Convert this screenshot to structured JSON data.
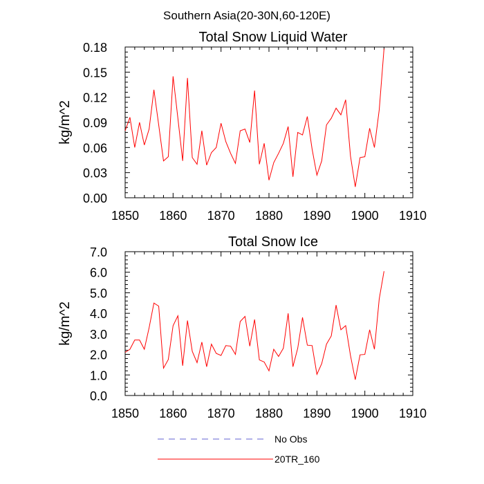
{
  "suptitle": "Southern Asia(20-30N,60-120E)",
  "chart_data": [
    {
      "type": "line",
      "title": "Total Snow Liquid Water",
      "xlabel": "",
      "ylabel": "kg/m^2",
      "xlim": [
        1850,
        1910
      ],
      "ylim": [
        0.0,
        0.18
      ],
      "xticks": [
        "1850",
        "1860",
        "1870",
        "1880",
        "1890",
        "1900",
        "1910"
      ],
      "yticks": [
        "0.00",
        "0.03",
        "0.06",
        "0.09",
        "0.12",
        "0.15",
        "0.18"
      ],
      "series": [
        {
          "name": "20TR_160",
          "color": "#ff0000",
          "x": [
            1850,
            1851,
            1852,
            1853,
            1854,
            1855,
            1856,
            1857,
            1858,
            1859,
            1860,
            1861,
            1862,
            1863,
            1864,
            1865,
            1866,
            1867,
            1868,
            1869,
            1870,
            1871,
            1872,
            1873,
            1874,
            1875,
            1876,
            1877,
            1878,
            1879,
            1880,
            1881,
            1882,
            1883,
            1884,
            1885,
            1886,
            1887,
            1888,
            1889,
            1890,
            1891,
            1892,
            1893,
            1894,
            1895,
            1896,
            1897,
            1898,
            1899,
            1900,
            1901,
            1902,
            1903,
            1904
          ],
          "values": [
            0.08,
            0.096,
            0.06,
            0.09,
            0.063,
            0.082,
            0.129,
            0.087,
            0.044,
            0.049,
            0.145,
            0.095,
            0.044,
            0.143,
            0.048,
            0.04,
            0.08,
            0.039,
            0.054,
            0.06,
            0.089,
            0.067,
            0.053,
            0.041,
            0.08,
            0.082,
            0.066,
            0.128,
            0.04,
            0.065,
            0.021,
            0.042,
            0.053,
            0.065,
            0.085,
            0.025,
            0.078,
            0.075,
            0.097,
            0.058,
            0.027,
            0.044,
            0.087,
            0.095,
            0.107,
            0.099,
            0.117,
            0.05,
            0.013,
            0.048,
            0.049,
            0.083,
            0.06,
            0.105,
            0.178
          ]
        }
      ]
    },
    {
      "type": "line",
      "title": "Total Snow Ice",
      "xlabel": "",
      "ylabel": "kg/m^2",
      "xlim": [
        1850,
        1910
      ],
      "ylim": [
        0.0,
        7.0
      ],
      "xticks": [
        "1850",
        "1860",
        "1870",
        "1880",
        "1890",
        "1900",
        "1910"
      ],
      "yticks": [
        "0.0",
        "1.0",
        "2.0",
        "3.0",
        "4.0",
        "5.0",
        "6.0",
        "7.0"
      ],
      "series": [
        {
          "name": "20TR_160",
          "color": "#ff0000",
          "x": [
            1850,
            1851,
            1852,
            1853,
            1854,
            1855,
            1856,
            1857,
            1858,
            1859,
            1860,
            1861,
            1862,
            1863,
            1864,
            1865,
            1866,
            1867,
            1868,
            1869,
            1870,
            1871,
            1872,
            1873,
            1874,
            1875,
            1876,
            1877,
            1878,
            1879,
            1880,
            1881,
            1882,
            1883,
            1884,
            1885,
            1886,
            1887,
            1888,
            1889,
            1890,
            1891,
            1892,
            1893,
            1894,
            1895,
            1896,
            1897,
            1898,
            1899,
            1900,
            1901,
            1902,
            1903,
            1904
          ],
          "values": [
            2.1,
            2.25,
            2.7,
            2.7,
            2.25,
            3.3,
            4.5,
            4.35,
            1.33,
            1.75,
            3.4,
            3.88,
            1.45,
            3.65,
            2.15,
            1.6,
            2.6,
            1.4,
            2.5,
            2.05,
            1.95,
            2.43,
            2.4,
            2.0,
            3.6,
            3.85,
            2.4,
            3.7,
            1.73,
            1.63,
            1.2,
            2.25,
            1.9,
            2.3,
            4.0,
            1.4,
            2.3,
            3.8,
            2.45,
            2.43,
            1.03,
            1.55,
            2.5,
            2.9,
            4.4,
            3.2,
            3.4,
            1.95,
            0.77,
            1.98,
            2.0,
            3.2,
            2.25,
            4.7,
            6.05
          ]
        }
      ]
    }
  ],
  "legend": {
    "placement": "bottom-center",
    "items": [
      {
        "label": "No Obs",
        "color": "#6060d0",
        "style": "dashed"
      },
      {
        "label": "20TR_160",
        "color": "#ff0000",
        "style": "solid"
      }
    ]
  }
}
